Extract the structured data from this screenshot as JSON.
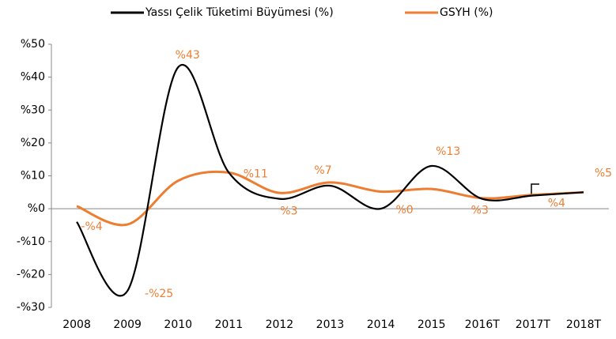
{
  "chart_data": {
    "type": "line",
    "categories": [
      "2008",
      "2009",
      "2010",
      "2011",
      "2012",
      "2013",
      "2014",
      "2015",
      "2016T",
      "2017T",
      "2018T"
    ],
    "series": [
      {
        "name": "Yassı Çelik Tüketimi Büyümesi (%)",
        "color": "#000000",
        "values": [
          -4,
          -25,
          43,
          11,
          3,
          7,
          0,
          13,
          3,
          4,
          5
        ],
        "value_labels": [
          "-%4",
          "-%25",
          "%43",
          "%11",
          "%3",
          "%7",
          "%0",
          "%13",
          "%3",
          "%4",
          "%5"
        ]
      },
      {
        "name": "GSYH (%)",
        "color": "#ed7d31",
        "values": [
          0.8,
          -4.8,
          8.5,
          11,
          4.8,
          8,
          5.2,
          6,
          3.2,
          4.2,
          5
        ]
      }
    ],
    "ylim": [
      -30,
      50
    ],
    "yticks": [
      {
        "value": -30,
        "label": "-%30"
      },
      {
        "value": -20,
        "label": "-%20"
      },
      {
        "value": -10,
        "label": "-%10"
      },
      {
        "value": 0,
        "label": "%0"
      },
      {
        "value": 10,
        "label": "%10"
      },
      {
        "value": 20,
        "label": "%20"
      },
      {
        "value": 30,
        "label": "%30"
      },
      {
        "value": 40,
        "label": "%40"
      },
      {
        "value": 50,
        "label": "%50"
      }
    ],
    "legend": "top",
    "label_color": "#ed7d31"
  }
}
